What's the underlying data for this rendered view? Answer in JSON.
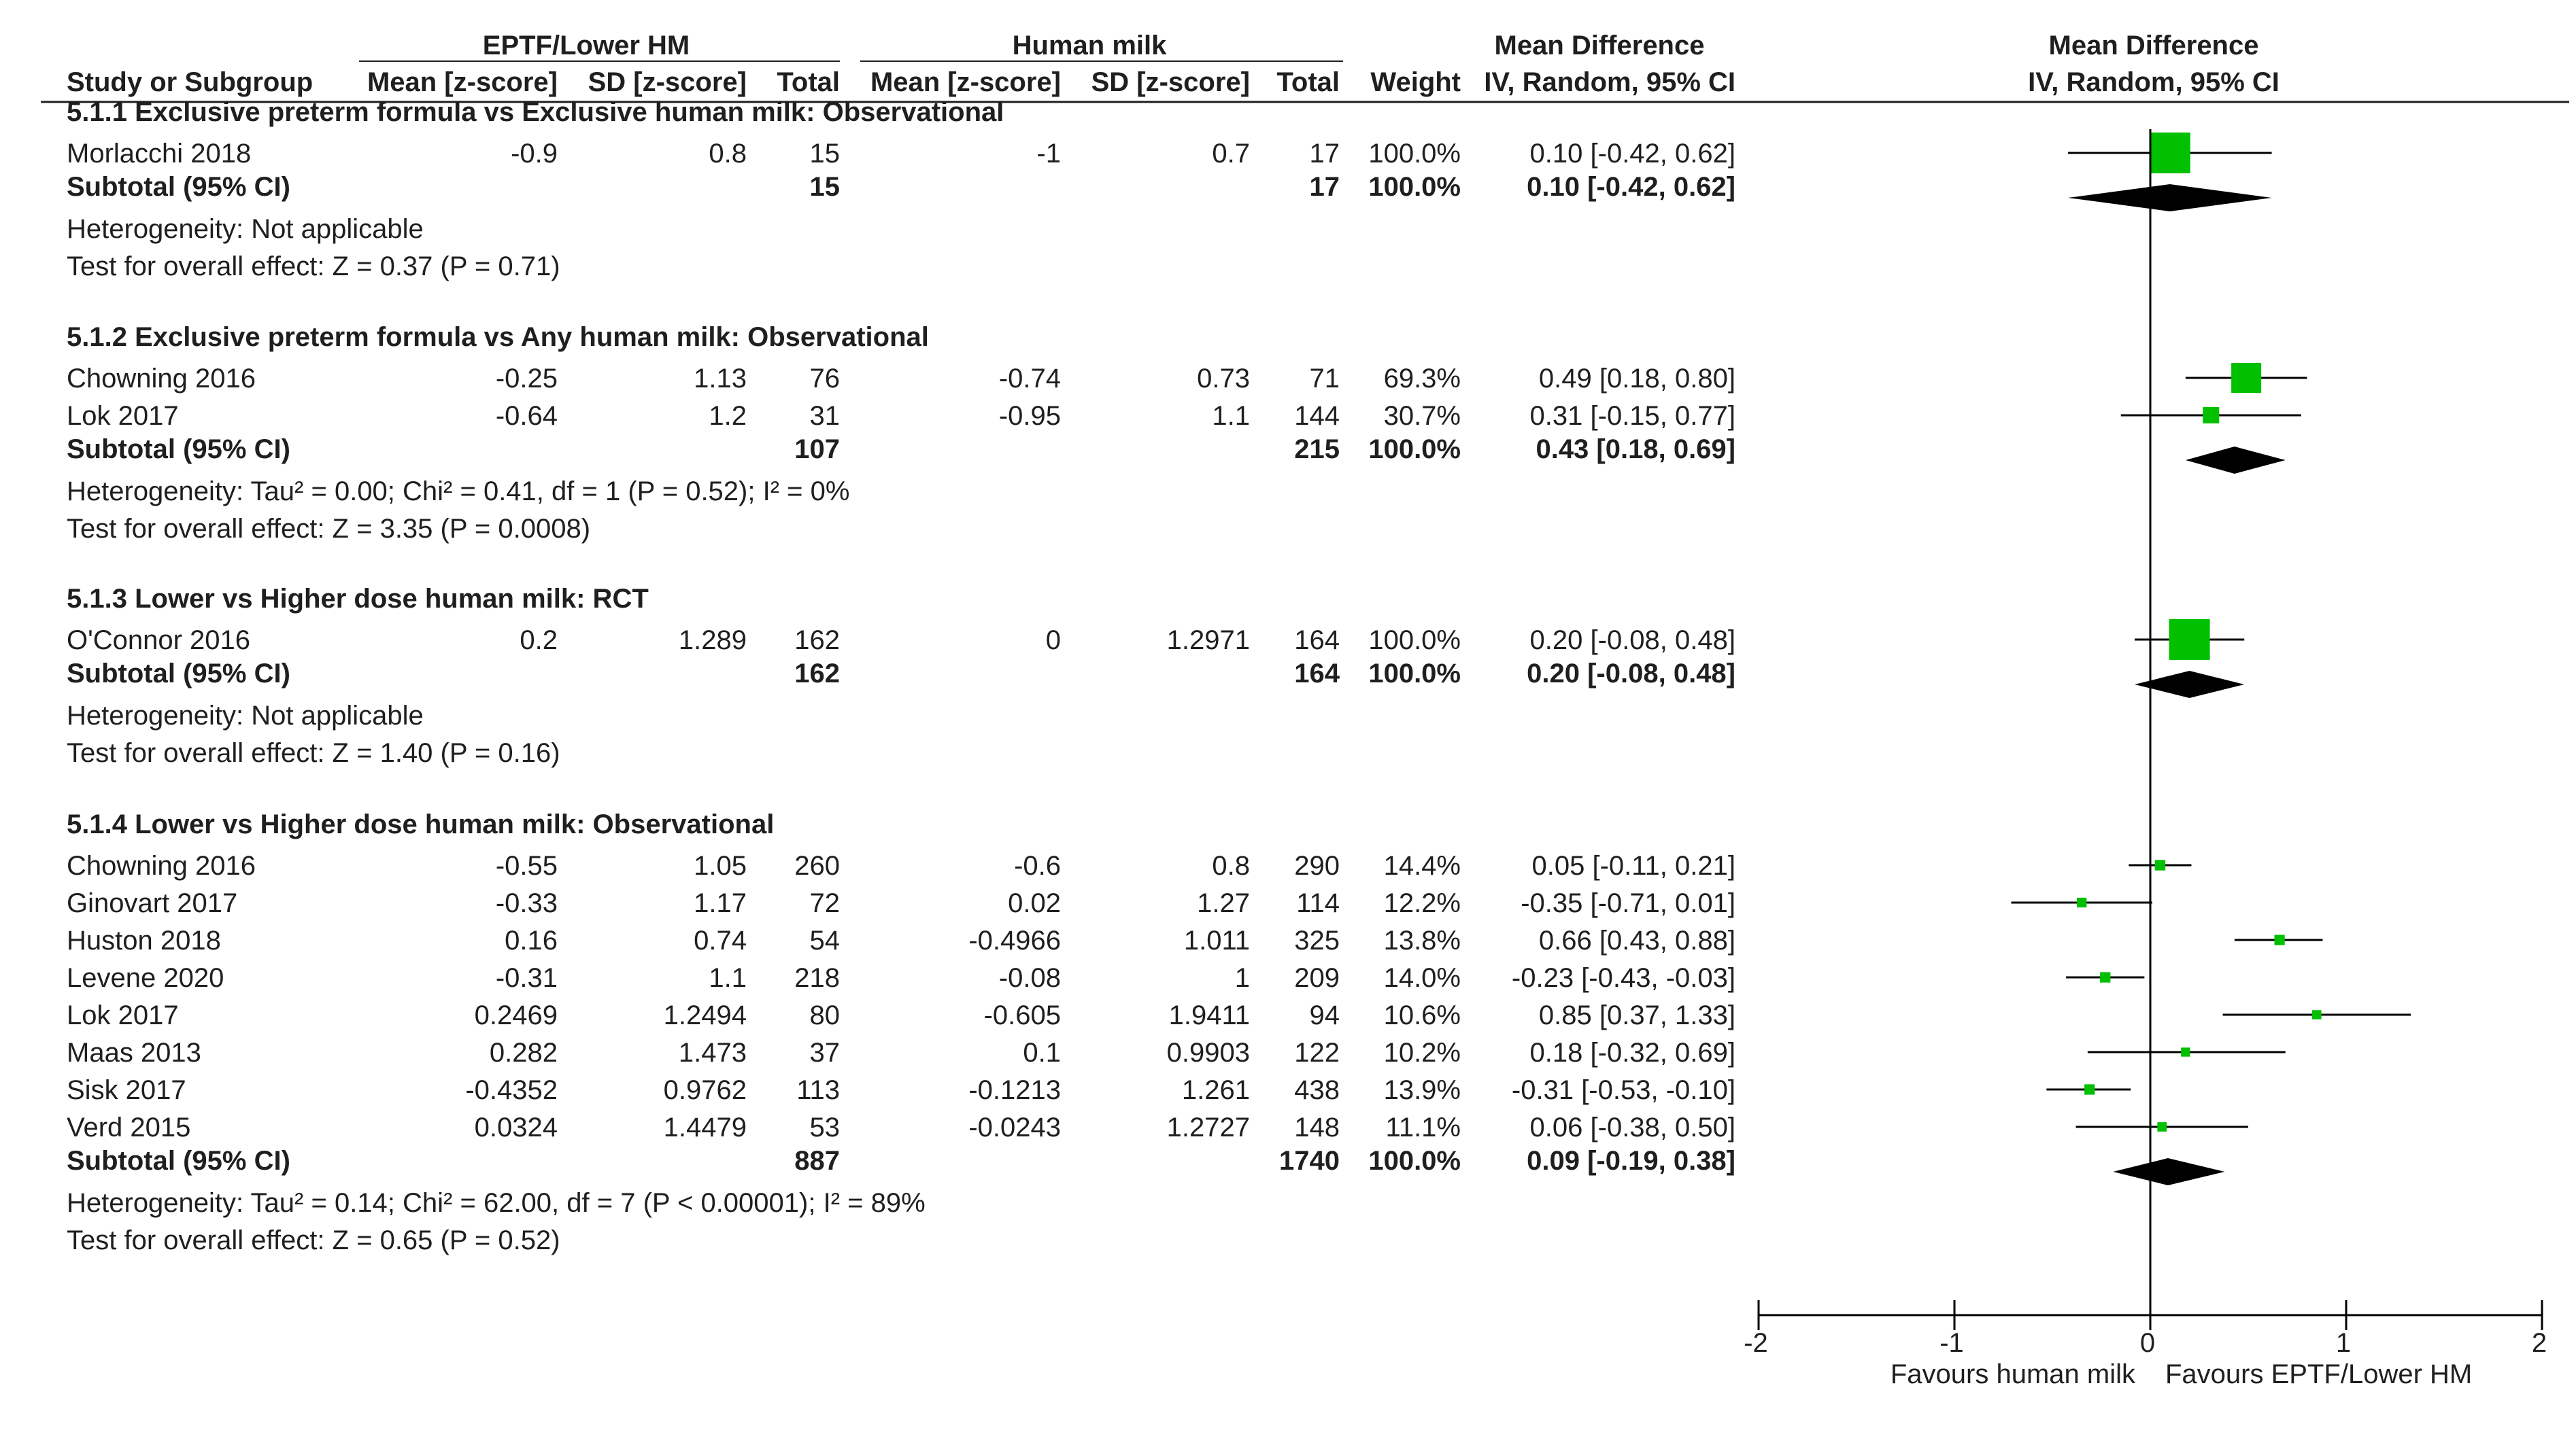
{
  "headers": {
    "group_eptf": "EPTF/Lower HM",
    "group_hm": "Human milk",
    "group_md": "Mean Difference",
    "group_plot": "Mean Difference",
    "study": "Study or Subgroup",
    "mean_e": "Mean [z-score]",
    "sd_e": "SD [z-score]",
    "total_e": "Total",
    "mean_c": "Mean [z-score]",
    "sd_c": "SD [z-score]",
    "total_c": "Total",
    "weight": "Weight",
    "ci": "IV, Random, 95% CI",
    "plot_sub": "IV, Random, 95% CI"
  },
  "chart_data": {
    "type": "forest",
    "title": "Mean Difference",
    "subtitle": "IV, Random, 95% CI",
    "xlim": [
      -2,
      2
    ],
    "xticks": [
      "-2",
      "-1",
      "0",
      "1",
      "2"
    ],
    "xlabel_left": "Favours human milk",
    "xlabel_right": "Favours EPTF/Lower HM",
    "colors": {
      "square": "#00c000",
      "line": "#000000",
      "diamond": "#000000"
    },
    "subgroups": [
      {
        "title": "5.1.1 Exclusive preterm formula vs Exclusive human milk: Observational",
        "studies": [
          {
            "name": "Morlacchi 2018",
            "mean_e": "-0.9",
            "sd_e": "0.8",
            "n_e": "15",
            "mean_c": "-1",
            "sd_c": "0.7",
            "n_c": "17",
            "weight": "100.0%",
            "ci_text": "0.10 [-0.42, 0.62]",
            "md": 0.1,
            "lo": -0.42,
            "hi": 0.62,
            "w": 100.0
          }
        ],
        "subtotal": {
          "label": "Subtotal (95% CI)",
          "n_e": "15",
          "n_c": "17",
          "weight": "100.0%",
          "ci_text": "0.10 [-0.42, 0.62]",
          "md": 0.1,
          "lo": -0.42,
          "hi": 0.62
        },
        "notes": [
          "Heterogeneity: Not applicable",
          "Test for overall effect: Z = 0.37 (P = 0.71)"
        ]
      },
      {
        "title": "5.1.2 Exclusive preterm formula vs Any human milk: Observational",
        "studies": [
          {
            "name": "Chowning 2016",
            "mean_e": "-0.25",
            "sd_e": "1.13",
            "n_e": "76",
            "mean_c": "-0.74",
            "sd_c": "0.73",
            "n_c": "71",
            "weight": "69.3%",
            "ci_text": "0.49 [0.18, 0.80]",
            "md": 0.49,
            "lo": 0.18,
            "hi": 0.8,
            "w": 69.3
          },
          {
            "name": "Lok 2017",
            "mean_e": "-0.64",
            "sd_e": "1.2",
            "n_e": "31",
            "mean_c": "-0.95",
            "sd_c": "1.1",
            "n_c": "144",
            "weight": "30.7%",
            "ci_text": "0.31 [-0.15, 0.77]",
            "md": 0.31,
            "lo": -0.15,
            "hi": 0.77,
            "w": 30.7
          }
        ],
        "subtotal": {
          "label": "Subtotal (95% CI)",
          "n_e": "107",
          "n_c": "215",
          "weight": "100.0%",
          "ci_text": "0.43 [0.18, 0.69]",
          "md": 0.43,
          "lo": 0.18,
          "hi": 0.69
        },
        "notes": [
          "Heterogeneity: Tau² = 0.00; Chi² = 0.41, df = 1 (P = 0.52); I² = 0%",
          "Test for overall effect: Z = 3.35 (P = 0.0008)"
        ]
      },
      {
        "title": "5.1.3 Lower vs Higher dose human milk: RCT",
        "studies": [
          {
            "name": "O'Connor 2016",
            "mean_e": "0.2",
            "sd_e": "1.289",
            "n_e": "162",
            "mean_c": "0",
            "sd_c": "1.2971",
            "n_c": "164",
            "weight": "100.0%",
            "ci_text": "0.20 [-0.08, 0.48]",
            "md": 0.2,
            "lo": -0.08,
            "hi": 0.48,
            "w": 100.0
          }
        ],
        "subtotal": {
          "label": "Subtotal (95% CI)",
          "n_e": "162",
          "n_c": "164",
          "weight": "100.0%",
          "ci_text": "0.20 [-0.08, 0.48]",
          "md": 0.2,
          "lo": -0.08,
          "hi": 0.48
        },
        "notes": [
          "Heterogeneity: Not applicable",
          "Test for overall effect: Z = 1.40 (P = 0.16)"
        ]
      },
      {
        "title": "5.1.4 Lower vs Higher dose human milk: Observational",
        "studies": [
          {
            "name": "Chowning 2016",
            "mean_e": "-0.55",
            "sd_e": "1.05",
            "n_e": "260",
            "mean_c": "-0.6",
            "sd_c": "0.8",
            "n_c": "290",
            "weight": "14.4%",
            "ci_text": "0.05 [-0.11, 0.21]",
            "md": 0.05,
            "lo": -0.11,
            "hi": 0.21,
            "w": 14.4
          },
          {
            "name": "Ginovart 2017",
            "mean_e": "-0.33",
            "sd_e": "1.17",
            "n_e": "72",
            "mean_c": "0.02",
            "sd_c": "1.27",
            "n_c": "114",
            "weight": "12.2%",
            "ci_text": "-0.35 [-0.71, 0.01]",
            "md": -0.35,
            "lo": -0.71,
            "hi": 0.01,
            "w": 12.2
          },
          {
            "name": "Huston 2018",
            "mean_e": "0.16",
            "sd_e": "0.74",
            "n_e": "54",
            "mean_c": "-0.4966",
            "sd_c": "1.011",
            "n_c": "325",
            "weight": "13.8%",
            "ci_text": "0.66 [0.43, 0.88]",
            "md": 0.66,
            "lo": 0.43,
            "hi": 0.88,
            "w": 13.8
          },
          {
            "name": "Levene 2020",
            "mean_e": "-0.31",
            "sd_e": "1.1",
            "n_e": "218",
            "mean_c": "-0.08",
            "sd_c": "1",
            "n_c": "209",
            "weight": "14.0%",
            "ci_text": "-0.23 [-0.43, -0.03]",
            "md": -0.23,
            "lo": -0.43,
            "hi": -0.03,
            "w": 14.0
          },
          {
            "name": "Lok 2017",
            "mean_e": "0.2469",
            "sd_e": "1.2494",
            "n_e": "80",
            "mean_c": "-0.605",
            "sd_c": "1.9411",
            "n_c": "94",
            "weight": "10.6%",
            "ci_text": "0.85 [0.37, 1.33]",
            "md": 0.85,
            "lo": 0.37,
            "hi": 1.33,
            "w": 10.6
          },
          {
            "name": "Maas 2013",
            "mean_e": "0.282",
            "sd_e": "1.473",
            "n_e": "37",
            "mean_c": "0.1",
            "sd_c": "0.9903",
            "n_c": "122",
            "weight": "10.2%",
            "ci_text": "0.18 [-0.32, 0.69]",
            "md": 0.18,
            "lo": -0.32,
            "hi": 0.69,
            "w": 10.2
          },
          {
            "name": "Sisk 2017",
            "mean_e": "-0.4352",
            "sd_e": "0.9762",
            "n_e": "113",
            "mean_c": "-0.1213",
            "sd_c": "1.261",
            "n_c": "438",
            "weight": "13.9%",
            "ci_text": "-0.31 [-0.53, -0.10]",
            "md": -0.31,
            "lo": -0.53,
            "hi": -0.1,
            "w": 13.9
          },
          {
            "name": "Verd 2015",
            "mean_e": "0.0324",
            "sd_e": "1.4479",
            "n_e": "53",
            "mean_c": "-0.0243",
            "sd_c": "1.2727",
            "n_c": "148",
            "weight": "11.1%",
            "ci_text": "0.06 [-0.38, 0.50]",
            "md": 0.06,
            "lo": -0.38,
            "hi": 0.5,
            "w": 11.1
          }
        ],
        "subtotal": {
          "label": "Subtotal (95% CI)",
          "n_e": "887",
          "n_c": "1740",
          "weight": "100.0%",
          "ci_text": "0.09 [-0.19, 0.38]",
          "md": 0.09,
          "lo": -0.19,
          "hi": 0.38
        },
        "notes": [
          "Heterogeneity: Tau² = 0.14; Chi² = 62.00, df = 7 (P < 0.00001); I² = 89%",
          "Test for overall effect: Z = 0.65 (P = 0.52)"
        ]
      }
    ]
  }
}
